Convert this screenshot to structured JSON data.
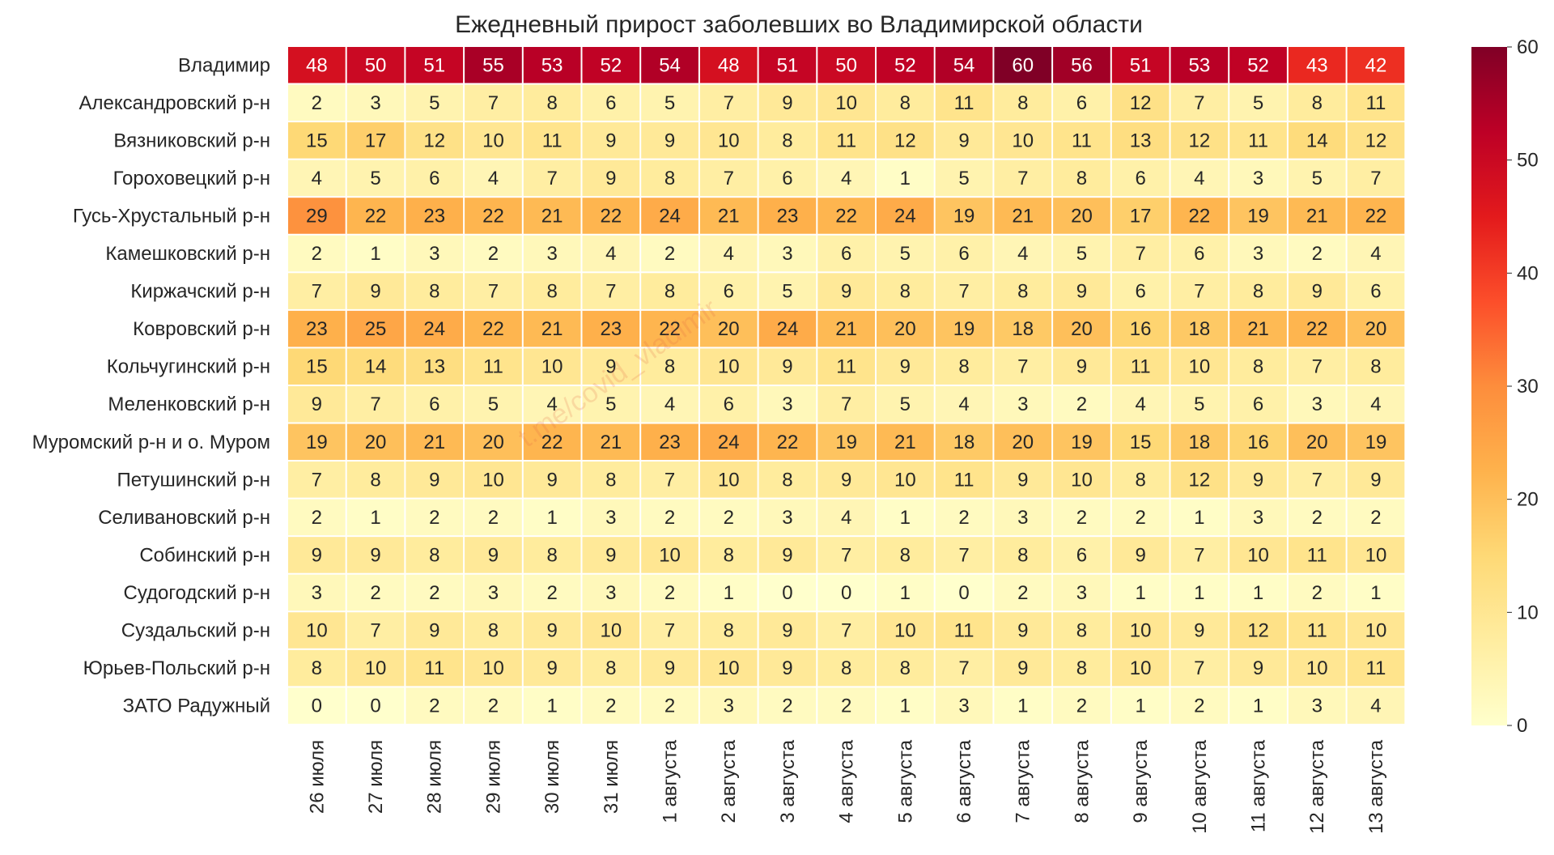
{
  "chart_data": {
    "type": "heatmap",
    "title": "Ежедневный прирост заболевших во Владимирской области",
    "watermark": "t.me/covid_vladimir",
    "rows": [
      "Владимир",
      "Александровский р-н",
      "Вязниковский р-н",
      "Гороховецкий р-н",
      "Гусь-Хрустальный р-н",
      "Камешковский р-н",
      "Киржачский р-н",
      "Ковровский р-н",
      "Кольчугинский р-н",
      "Меленковский р-н",
      "Муромский р-н и о. Муром",
      "Петушинский р-н",
      "Селивановский р-н",
      "Собинский р-н",
      "Судогодский р-н",
      "Суздальский р-н",
      "Юрьев-Польский р-н",
      "ЗАТО Радужный"
    ],
    "columns": [
      "26 июля",
      "27 июля",
      "28 июля",
      "29 июля",
      "30 июля",
      "31 июля",
      "1 августа",
      "2 августа",
      "3 августа",
      "4 августа",
      "5 августа",
      "6 августа",
      "7 августа",
      "8 августа",
      "9 августа",
      "10 августа",
      "11 августа",
      "12 августа",
      "13 августа"
    ],
    "values": [
      [
        48,
        50,
        51,
        55,
        53,
        52,
        54,
        48,
        51,
        50,
        52,
        54,
        60,
        56,
        51,
        53,
        52,
        43,
        42
      ],
      [
        2,
        3,
        5,
        7,
        8,
        6,
        5,
        7,
        9,
        10,
        8,
        11,
        8,
        6,
        12,
        7,
        5,
        8,
        11
      ],
      [
        15,
        17,
        12,
        10,
        11,
        9,
        9,
        10,
        8,
        11,
        12,
        9,
        10,
        11,
        13,
        12,
        11,
        14,
        12
      ],
      [
        4,
        5,
        6,
        4,
        7,
        9,
        8,
        7,
        6,
        4,
        1,
        5,
        7,
        8,
        6,
        4,
        3,
        5,
        7
      ],
      [
        29,
        22,
        23,
        22,
        21,
        22,
        24,
        21,
        23,
        22,
        24,
        19,
        21,
        20,
        17,
        22,
        19,
        21,
        22
      ],
      [
        2,
        1,
        3,
        2,
        3,
        4,
        2,
        4,
        3,
        6,
        5,
        6,
        4,
        5,
        7,
        6,
        3,
        2,
        4
      ],
      [
        7,
        9,
        8,
        7,
        8,
        7,
        8,
        6,
        5,
        9,
        8,
        7,
        8,
        9,
        6,
        7,
        8,
        9,
        6
      ],
      [
        23,
        25,
        24,
        22,
        21,
        23,
        22,
        20,
        24,
        21,
        20,
        19,
        18,
        20,
        16,
        18,
        21,
        22,
        20
      ],
      [
        15,
        14,
        13,
        11,
        10,
        9,
        8,
        10,
        9,
        11,
        9,
        8,
        7,
        9,
        11,
        10,
        8,
        7,
        8
      ],
      [
        9,
        7,
        6,
        5,
        4,
        5,
        4,
        6,
        3,
        7,
        5,
        4,
        3,
        2,
        4,
        5,
        6,
        3,
        4
      ],
      [
        19,
        20,
        21,
        20,
        22,
        21,
        23,
        24,
        22,
        19,
        21,
        18,
        20,
        19,
        15,
        18,
        16,
        20,
        19
      ],
      [
        7,
        8,
        9,
        10,
        9,
        8,
        7,
        10,
        8,
        9,
        10,
        11,
        9,
        10,
        8,
        12,
        9,
        7,
        9
      ],
      [
        2,
        1,
        2,
        2,
        1,
        3,
        2,
        2,
        3,
        4,
        1,
        2,
        3,
        2,
        2,
        1,
        3,
        2,
        2
      ],
      [
        9,
        9,
        8,
        9,
        8,
        9,
        10,
        8,
        9,
        7,
        8,
        7,
        8,
        6,
        9,
        7,
        10,
        11,
        10
      ],
      [
        3,
        2,
        2,
        3,
        2,
        3,
        2,
        1,
        0,
        0,
        1,
        0,
        2,
        3,
        1,
        1,
        1,
        2,
        1
      ],
      [
        10,
        7,
        9,
        8,
        9,
        10,
        7,
        8,
        9,
        7,
        10,
        11,
        9,
        8,
        10,
        9,
        12,
        11,
        10
      ],
      [
        8,
        10,
        11,
        10,
        9,
        8,
        9,
        10,
        9,
        8,
        8,
        7,
        9,
        8,
        10,
        7,
        9,
        10,
        11
      ],
      [
        0,
        0,
        2,
        2,
        1,
        2,
        2,
        3,
        2,
        2,
        1,
        3,
        1,
        2,
        1,
        2,
        1,
        3,
        4
      ]
    ],
    "colorbar": {
      "min": 0,
      "max": 60,
      "ticks": [
        0,
        10,
        20,
        30,
        40,
        50,
        60
      ],
      "colormap": "YlOrRd",
      "stops": [
        "#ffffcc",
        "#ffeda0",
        "#fed976",
        "#feb24c",
        "#fd8d3c",
        "#fc4e2a",
        "#e31a1c",
        "#bd0026",
        "#800026"
      ]
    },
    "grid": false,
    "legend": "colorbar-right"
  }
}
